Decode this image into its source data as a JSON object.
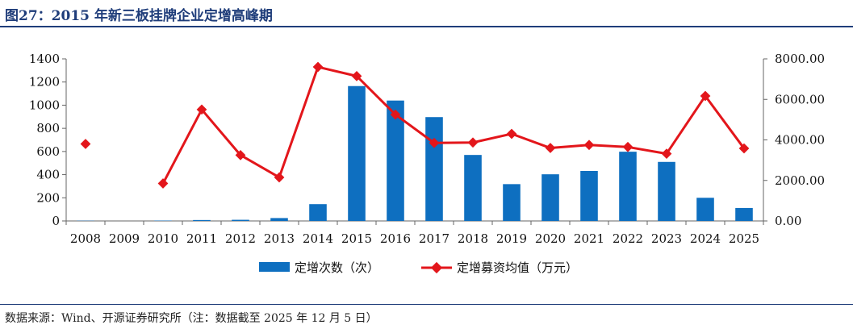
{
  "title": "图27：2015 年新三板挂牌企业定增高峰期",
  "source": "数据来源：Wind、开源证券研究所（注：数据截至 2025 年 12 月 5 日）",
  "colors": {
    "bar": "#0e6fc0",
    "line": "#e3161b",
    "title": "#1f3d7a"
  },
  "chart_data": {
    "type": "bar+line",
    "categories": [
      "2008",
      "2009",
      "2010",
      "2011",
      "2012",
      "2013",
      "2014",
      "2015",
      "2016",
      "2017",
      "2018",
      "2019",
      "2020",
      "2021",
      "2022",
      "2023",
      "2024",
      "2025"
    ],
    "y_left": {
      "ylim": [
        0,
        1400
      ],
      "ticks": [
        "0",
        "200",
        "400",
        "600",
        "800",
        "1000",
        "1200",
        "1400"
      ]
    },
    "y_right": {
      "ylim": [
        0,
        8000
      ],
      "ticks": [
        "0.00",
        "2000.00",
        "4000.00",
        "6000.00",
        "8000.00"
      ]
    },
    "series": [
      {
        "name": "定增次数（次）",
        "type": "bar",
        "axis": "left",
        "values": [
          2,
          0,
          3,
          8,
          10,
          25,
          145,
          1165,
          1040,
          897,
          570,
          318,
          403,
          432,
          598,
          510,
          200,
          112
        ]
      },
      {
        "name": "定增募资均值（万元）",
        "type": "line",
        "axis": "right",
        "values": [
          3800,
          null,
          1850,
          5500,
          3250,
          2150,
          7600,
          7150,
          5250,
          3850,
          3870,
          4300,
          3600,
          3750,
          3650,
          3320,
          6170,
          3580
        ]
      }
    ],
    "legend_position": "bottom",
    "grid": false
  }
}
